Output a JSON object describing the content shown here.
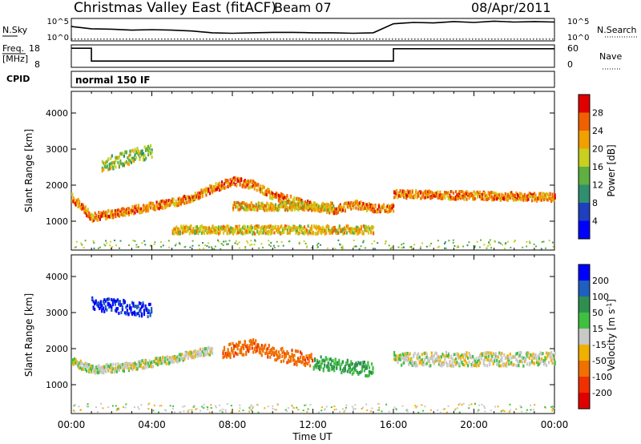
{
  "header": {
    "title": "Christmas Valley East (fitACF)",
    "beam": "Beam 07",
    "date": "08/Apr/2011"
  },
  "chart_data": [
    {
      "type": "line",
      "name": "nsky-nsearch-panel",
      "left_label": "N.Sky",
      "right_label": "N.Search",
      "left_ticks": [
        "10^5",
        "10^0"
      ],
      "right_ticks": [
        "10^5",
        "10^0"
      ],
      "series": [
        {
          "name": "N.Sky",
          "style": "solid",
          "x": [
            0,
            1,
            2,
            3,
            4,
            5,
            6,
            7,
            8,
            9,
            10,
            11,
            12,
            13,
            14,
            15,
            16,
            17,
            18,
            19,
            20,
            21,
            22,
            23,
            24
          ],
          "y": [
            3.2,
            2.7,
            2.6,
            2.4,
            2.5,
            2.4,
            2.2,
            1.8,
            1.7,
            1.8,
            1.9,
            1.9,
            1.8,
            1.8,
            1.7,
            1.8,
            3.8,
            4.1,
            4.0,
            4.3,
            4.1,
            4.4,
            4.2,
            4.3,
            4.2
          ]
        },
        {
          "name": "N.Search",
          "style": "dotted",
          "x": [
            0,
            24
          ],
          "y": [
            0.4,
            0.4
          ]
        }
      ]
    },
    {
      "type": "line",
      "name": "freq-nave-panel",
      "left_label": "Freq. [MHz]",
      "right_label": "Nave",
      "left_ticks": [
        "18",
        "8"
      ],
      "right_ticks": [
        "60",
        "0"
      ],
      "series": [
        {
          "name": "Freq.",
          "style": "solid",
          "x": [
            0,
            1,
            1,
            16,
            16,
            24
          ],
          "y": [
            16.5,
            16.5,
            10.8,
            10.8,
            16.3,
            16.3
          ]
        },
        {
          "name": "Nave",
          "style": "dotted",
          "x": [
            0,
            24
          ],
          "y": [
            45,
            45
          ]
        }
      ]
    },
    {
      "type": "text",
      "name": "cpid-panel",
      "label": "CPID",
      "value": "normal 150 IF"
    },
    {
      "type": "heatmap",
      "name": "power-panel",
      "xlabel": "Time UT",
      "ylabel": "Slant Range [km]",
      "x_range": [
        0,
        24
      ],
      "y_range": [
        200,
        4600
      ],
      "x_ticks": [
        "00:00",
        "04:00",
        "08:00",
        "12:00",
        "16:00",
        "20:00",
        "00:00"
      ],
      "y_ticks": [
        1000,
        2000,
        3000,
        4000
      ],
      "colorbar": {
        "label": "Power [dB]",
        "ticks": [
          4,
          8,
          12,
          16,
          20,
          24,
          28
        ],
        "colors": [
          "#0000ff",
          "#1f3fbf",
          "#2f8f6f",
          "#5fb040",
          "#c8d020",
          "#f0a000",
          "#f06000",
          "#e00000"
        ]
      },
      "features": [
        {
          "name": "main-band",
          "t": [
            0,
            1,
            2,
            3,
            4,
            5,
            6,
            7,
            8,
            9,
            10,
            11,
            12,
            13,
            14,
            15,
            16
          ],
          "r": [
            1700,
            1150,
            1250,
            1350,
            1450,
            1550,
            1700,
            1950,
            2150,
            2050,
            1750,
            1600,
            1450,
            1350,
            1500,
            1400,
            1400
          ],
          "power": 24
        },
        {
          "name": "upper-echoes",
          "t": [
            1.5,
            4.0
          ],
          "r": [
            2600,
            3000
          ],
          "power": 16
        },
        {
          "name": "horizontal-band",
          "t": [
            8,
            13
          ],
          "r": [
            1450,
            1450
          ],
          "power": 20
        },
        {
          "name": "low-band",
          "t": [
            5,
            15
          ],
          "r": [
            800,
            800
          ],
          "power": 20
        },
        {
          "name": "late-band",
          "t": [
            16,
            24
          ],
          "r": [
            1800,
            1700
          ],
          "power": 24
        }
      ]
    },
    {
      "type": "heatmap",
      "name": "velocity-panel",
      "xlabel": "Time UT",
      "ylabel": "Slant Range [km]",
      "x_range": [
        0,
        24
      ],
      "y_range": [
        200,
        4600
      ],
      "x_ticks": [
        "00:00",
        "04:00",
        "08:00",
        "12:00",
        "16:00",
        "20:00",
        "00:00"
      ],
      "y_ticks": [
        1000,
        2000,
        3000,
        4000
      ],
      "colorbar": {
        "label": "Velocity [m s^-1]",
        "ticks": [
          200,
          100,
          50,
          15,
          -15,
          -50,
          -100,
          -200
        ],
        "colors": [
          "#0000ff",
          "#1f5fbf",
          "#2f8f4f",
          "#40c040",
          "#c8c8c8",
          "#f0b000",
          "#f07000",
          "#f03000",
          "#e00000"
        ]
      },
      "features": [
        {
          "name": "gray-band",
          "t": [
            0,
            1,
            3,
            5,
            7
          ],
          "r": [
            1700,
            1450,
            1550,
            1750,
            2000
          ],
          "velocity": 0
        },
        {
          "name": "orange-patch",
          "t": [
            7.5,
            9,
            10.5,
            12
          ],
          "r": [
            1950,
            2100,
            1850,
            1700
          ],
          "velocity": -80
        },
        {
          "name": "blue-echoes",
          "t": [
            1,
            4
          ],
          "r": [
            3300,
            3100
          ],
          "velocity": 200
        },
        {
          "name": "green-patch",
          "t": [
            12,
            15
          ],
          "r": [
            1650,
            1450
          ],
          "velocity": 50
        },
        {
          "name": "late-gray",
          "t": [
            16,
            24
          ],
          "r": [
            1750,
            1750
          ],
          "velocity": 0
        }
      ]
    }
  ]
}
